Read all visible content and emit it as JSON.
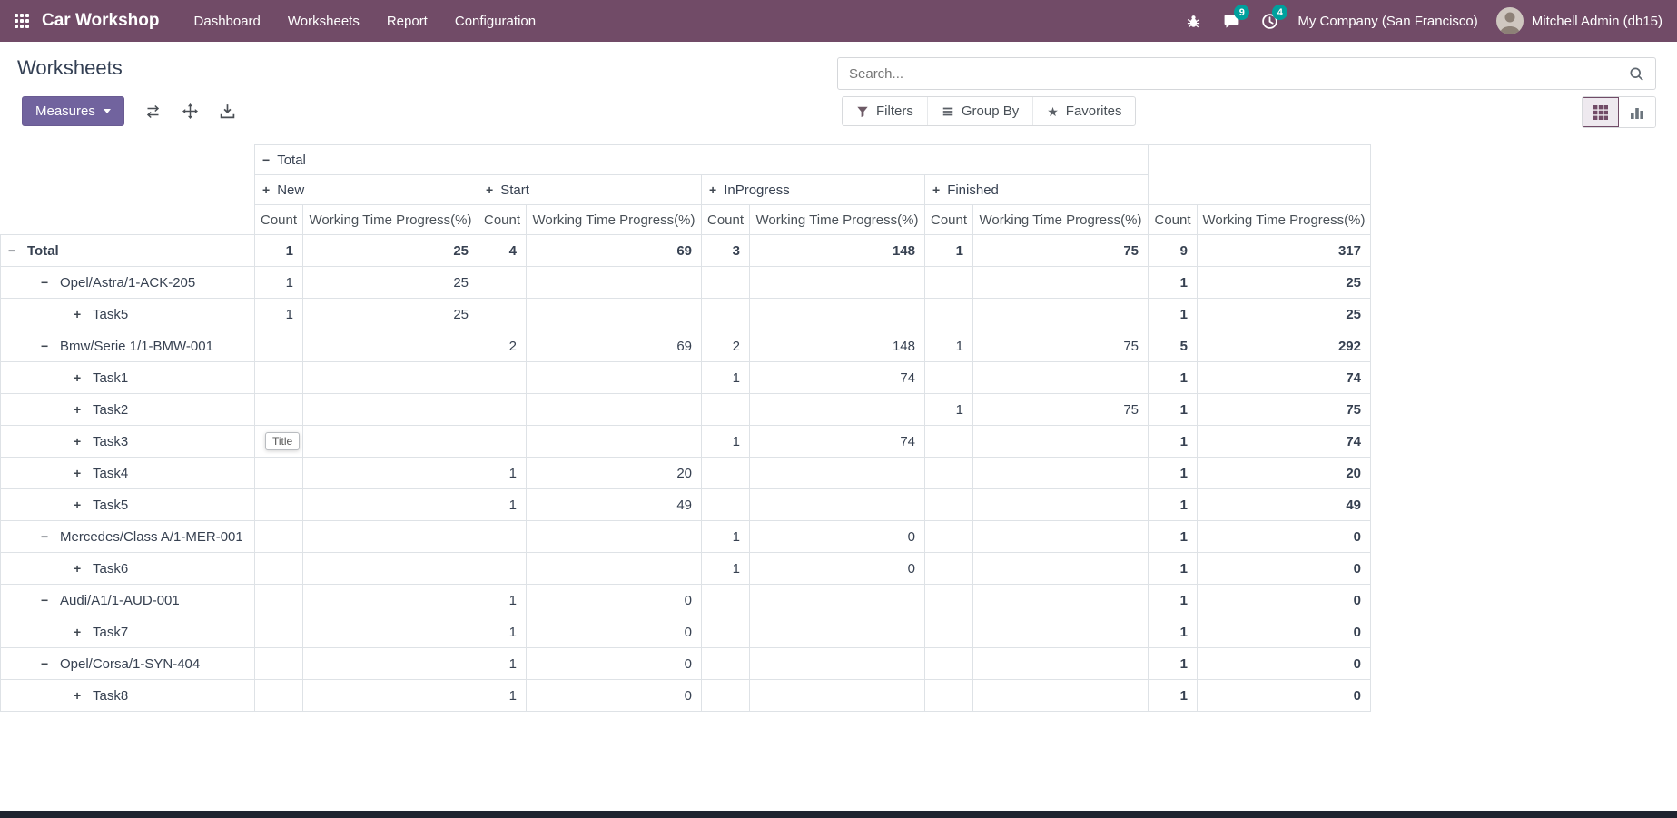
{
  "navbar": {
    "app_name": "Car Workshop",
    "menu_items": [
      "Dashboard",
      "Worksheets",
      "Report",
      "Configuration"
    ],
    "message_badge": "9",
    "activity_badge": "4",
    "company": "My Company (San Francisco)",
    "user": "Mitchell Admin (db15)"
  },
  "control_panel": {
    "title": "Worksheets",
    "search_placeholder": "Search...",
    "measures_label": "Measures",
    "filters_label": "Filters",
    "group_by_label": "Group By",
    "favorites_label": "Favorites"
  },
  "tooltip": "Title",
  "pivot": {
    "top_header": "Total",
    "column_groups": [
      "New",
      "Start",
      "InProgress",
      "Finished"
    ],
    "measure_headers": [
      "Count",
      "Working Time Progress(%)"
    ],
    "rows": [
      {
        "label": "Total",
        "level": 0,
        "sign": "minus",
        "bold": true,
        "cells": [
          "1",
          "25",
          "4",
          "69",
          "3",
          "148",
          "1",
          "75",
          "9",
          "317"
        ]
      },
      {
        "label": "Opel/Astra/1-ACK-205",
        "level": 1,
        "sign": "minus",
        "bold": false,
        "cells": [
          "1",
          "25",
          "",
          "",
          "",
          "",
          "",
          "",
          "1",
          "25"
        ]
      },
      {
        "label": "Task5",
        "level": 2,
        "sign": "plus",
        "bold": false,
        "cells": [
          "1",
          "25",
          "",
          "",
          "",
          "",
          "",
          "",
          "1",
          "25"
        ]
      },
      {
        "label": "Bmw/Serie 1/1-BMW-001",
        "level": 1,
        "sign": "minus",
        "bold": false,
        "cells": [
          "",
          "",
          "2",
          "69",
          "2",
          "148",
          "1",
          "75",
          "5",
          "292"
        ]
      },
      {
        "label": "Task1",
        "level": 2,
        "sign": "plus",
        "bold": false,
        "cells": [
          "",
          "",
          "",
          "",
          "1",
          "74",
          "",
          "",
          "1",
          "74"
        ]
      },
      {
        "label": "Task2",
        "level": 2,
        "sign": "plus",
        "bold": false,
        "cells": [
          "",
          "",
          "",
          "",
          "",
          "",
          "1",
          "75",
          "1",
          "75"
        ]
      },
      {
        "label": "Task3",
        "level": 2,
        "sign": "plus",
        "bold": false,
        "cells": [
          "",
          "",
          "",
          "",
          "1",
          "74",
          "",
          "",
          "1",
          "74"
        ]
      },
      {
        "label": "Task4",
        "level": 2,
        "sign": "plus",
        "bold": false,
        "cells": [
          "",
          "",
          "1",
          "20",
          "",
          "",
          "",
          "",
          "1",
          "20"
        ]
      },
      {
        "label": "Task5",
        "level": 2,
        "sign": "plus",
        "bold": false,
        "cells": [
          "",
          "",
          "1",
          "49",
          "",
          "",
          "",
          "",
          "1",
          "49"
        ]
      },
      {
        "label": "Mercedes/Class A/1-MER-001",
        "level": 1,
        "sign": "minus",
        "bold": false,
        "cells": [
          "",
          "",
          "",
          "",
          "1",
          "0",
          "",
          "",
          "1",
          "0"
        ]
      },
      {
        "label": "Task6",
        "level": 2,
        "sign": "plus",
        "bold": false,
        "cells": [
          "",
          "",
          "",
          "",
          "1",
          "0",
          "",
          "",
          "1",
          "0"
        ]
      },
      {
        "label": "Audi/A1/1-AUD-001",
        "level": 1,
        "sign": "minus",
        "bold": false,
        "cells": [
          "",
          "",
          "1",
          "0",
          "",
          "",
          "",
          "",
          "1",
          "0"
        ]
      },
      {
        "label": "Task7",
        "level": 2,
        "sign": "plus",
        "bold": false,
        "cells": [
          "",
          "",
          "1",
          "0",
          "",
          "",
          "",
          "",
          "1",
          "0"
        ]
      },
      {
        "label": "Opel/Corsa/1-SYN-404",
        "level": 1,
        "sign": "minus",
        "bold": false,
        "cells": [
          "",
          "",
          "1",
          "0",
          "",
          "",
          "",
          "",
          "1",
          "0"
        ]
      },
      {
        "label": "Task8",
        "level": 2,
        "sign": "plus",
        "bold": false,
        "cells": [
          "",
          "",
          "1",
          "0",
          "",
          "",
          "",
          "",
          "1",
          "0"
        ]
      }
    ]
  }
}
